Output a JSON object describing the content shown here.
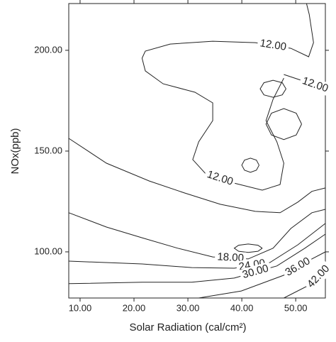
{
  "chart_data": {
    "type": "contour",
    "x_label": "Solar Radiation (cal/cm²)",
    "y_label": "NOx(ppb)",
    "xlim": [
      7.9,
      55.5
    ],
    "ylim": [
      77.1,
      223.2
    ],
    "xticks": [
      {
        "value": 10,
        "label": "10.00"
      },
      {
        "value": 20,
        "label": "20.00"
      },
      {
        "value": 30,
        "label": "30.00"
      },
      {
        "value": 40,
        "label": "40.00"
      },
      {
        "value": 50,
        "label": "50.00"
      }
    ],
    "yticks": [
      {
        "value": 100,
        "label": "100.00"
      },
      {
        "value": 150,
        "label": "150.00"
      },
      {
        "value": 200,
        "label": "200.00"
      }
    ],
    "color": "#222222",
    "contours": [
      {
        "level": 12,
        "label": "12.00",
        "points": [
          [
            21.5,
            196.1
          ],
          [
            22.1,
            199.6
          ],
          [
            26.7,
            203.1
          ],
          [
            34.6,
            204.5
          ],
          [
            42.5,
            203.8
          ],
          [
            49.1,
            201.0
          ],
          [
            52.4,
            196.8
          ],
          [
            53.3,
            203.8
          ],
          [
            52.5,
            217.9
          ],
          [
            52.0,
            223.2
          ]
        ]
      },
      {
        "level": 12,
        "label": "12.00",
        "points": [
          [
            21.5,
            196.1
          ],
          [
            22.1,
            189.8
          ],
          [
            25.4,
            183.4
          ],
          [
            31.3,
            179.2
          ],
          [
            34.6,
            173.9
          ],
          [
            34.6,
            165.1
          ],
          [
            32.0,
            154.6
          ],
          [
            30.9,
            145.8
          ],
          [
            33.3,
            138.7
          ],
          [
            38.6,
            134.1
          ],
          [
            43.8,
            130.6
          ],
          [
            47.1,
            133.4
          ],
          [
            47.8,
            144.0
          ],
          [
            46.5,
            154.6
          ],
          [
            44.5,
            165.1
          ],
          [
            45.8,
            175.7
          ],
          [
            47.8,
            186.2
          ]
        ]
      },
      {
        "level": 12,
        "label": "12.00",
        "points": [
          [
            47.8,
            188.0
          ],
          [
            51.7,
            184.5
          ],
          [
            55.5,
            181.0
          ]
        ]
      },
      {
        "points": [
          [
            48.2,
            180.9
          ],
          [
            47.5,
            183.9
          ],
          [
            45.8,
            185.1
          ],
          [
            44.1,
            183.9
          ],
          [
            43.4,
            180.9
          ],
          [
            44.1,
            177.9
          ],
          [
            45.8,
            176.7
          ],
          [
            47.5,
            177.9
          ],
          [
            48.2,
            180.9
          ]
        ]
      },
      {
        "points": [
          [
            51.1,
            163.4
          ],
          [
            50.1,
            168.8
          ],
          [
            47.8,
            171.1
          ],
          [
            45.5,
            168.8
          ],
          [
            44.5,
            163.4
          ],
          [
            45.5,
            158.0
          ],
          [
            47.8,
            155.7
          ],
          [
            50.1,
            158.0
          ],
          [
            51.1,
            163.4
          ]
        ]
      },
      {
        "points": [
          [
            43.2,
            143.0
          ],
          [
            42.7,
            145.5
          ],
          [
            41.6,
            146.5
          ],
          [
            40.5,
            145.5
          ],
          [
            40.0,
            143.0
          ],
          [
            40.5,
            140.5
          ],
          [
            41.6,
            139.5
          ],
          [
            42.7,
            140.5
          ],
          [
            43.2,
            143.0
          ]
        ]
      },
      {
        "points": [
          [
            43.8,
            101.8
          ],
          [
            43.0,
            103.3
          ],
          [
            41.2,
            103.9
          ],
          [
            39.4,
            103.3
          ],
          [
            38.6,
            101.8
          ],
          [
            39.4,
            100.3
          ],
          [
            41.2,
            99.7
          ],
          [
            43.0,
            100.3
          ],
          [
            43.8,
            101.8
          ]
        ]
      },
      {
        "points": [
          [
            7.9,
            156.3
          ],
          [
            14.9,
            144.0
          ],
          [
            22.8,
            135.2
          ],
          [
            29.4,
            129.2
          ],
          [
            36.0,
            123.6
          ],
          [
            42.5,
            120.1
          ],
          [
            47.1,
            119.4
          ],
          [
            50.4,
            124.7
          ],
          [
            53.0,
            130.0
          ],
          [
            55.5,
            131.7
          ]
        ]
      },
      {
        "level": 18,
        "label": "18.00",
        "points": [
          [
            7.9,
            119.4
          ],
          [
            14.9,
            112.3
          ],
          [
            21.5,
            107.0
          ],
          [
            28.1,
            101.8
          ],
          [
            34.6,
            97.5
          ],
          [
            41.2,
            96.5
          ],
          [
            45.8,
            101.8
          ],
          [
            49.1,
            111.6
          ],
          [
            53.0,
            119.4
          ],
          [
            55.5,
            121.1
          ]
        ]
      },
      {
        "level": 24,
        "label": "24.00",
        "points": [
          [
            7.9,
            95.4
          ],
          [
            21.5,
            94.0
          ],
          [
            30.7,
            92.2
          ],
          [
            38.6,
            91.9
          ],
          [
            45.2,
            94.7
          ],
          [
            50.4,
            103.5
          ],
          [
            55.5,
            114.1
          ]
        ]
      },
      {
        "level": 30,
        "label": "30.00",
        "points": [
          [
            7.9,
            84.2
          ],
          [
            21.5,
            84.9
          ],
          [
            30.7,
            84.9
          ],
          [
            38.6,
            87.0
          ],
          [
            46.5,
            93.0
          ],
          [
            51.7,
            101.8
          ],
          [
            55.5,
            108.8
          ]
        ]
      },
      {
        "level": 36,
        "label": "36.00",
        "points": [
          [
            32.0,
            77.1
          ],
          [
            39.9,
            80.6
          ],
          [
            47.8,
            88.4
          ],
          [
            53.0,
            96.5
          ],
          [
            55.5,
            100.0
          ]
        ]
      },
      {
        "level": 42,
        "label": "42.00",
        "points": [
          [
            47.8,
            77.1
          ],
          [
            53.0,
            84.2
          ],
          [
            55.5,
            91.2
          ]
        ]
      }
    ]
  }
}
